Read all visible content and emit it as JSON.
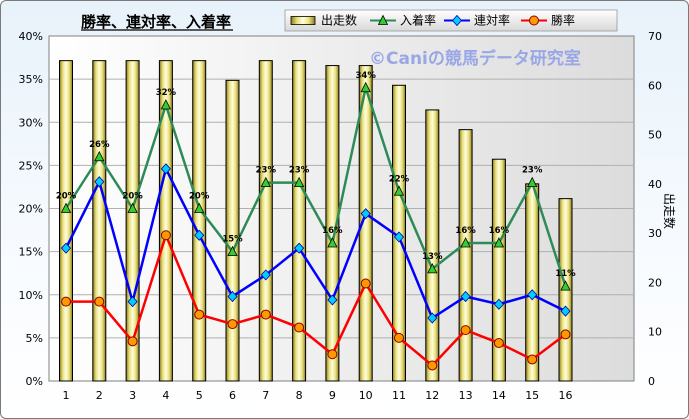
{
  "chart_data": {
    "type": "bar+line",
    "title": "勝率、連対率、入着率",
    "watermark": "©Caniの競馬データ研究室",
    "categories": [
      "1",
      "2",
      "3",
      "4",
      "5",
      "6",
      "7",
      "8",
      "9",
      "10",
      "11",
      "12",
      "13",
      "14",
      "15",
      "16"
    ],
    "y2label": "出走数",
    "ylim": [
      0,
      0.4
    ],
    "y2lim": [
      0,
      70
    ],
    "yticks": [
      "0%",
      "5%",
      "10%",
      "15%",
      "20%",
      "25%",
      "30%",
      "35%",
      "40%"
    ],
    "y2ticks": [
      "0",
      "10",
      "20",
      "30",
      "40",
      "50",
      "60",
      "70"
    ],
    "grid": true,
    "legend_position": "top",
    "series": [
      {
        "name": "出走数",
        "axis": "right",
        "kind": "bar",
        "color": "#e8e07a",
        "values": [
          65,
          65,
          65,
          65,
          65,
          61,
          65,
          65,
          64,
          64,
          60,
          55,
          51,
          45,
          40,
          37
        ]
      },
      {
        "name": "入着率",
        "axis": "left",
        "kind": "line",
        "color": "#2e8b57",
        "marker": "triangle",
        "marker_color": "#33cc33",
        "values": [
          0.2,
          0.26,
          0.2,
          0.32,
          0.2,
          0.15,
          0.23,
          0.23,
          0.16,
          0.34,
          0.22,
          0.13,
          0.16,
          0.16,
          0.23,
          0.11
        ],
        "labels": [
          "20%",
          "26%",
          "20%",
          "32%",
          "20%",
          "15%",
          "23%",
          "23%",
          "16%",
          "34%",
          "22%",
          "13%",
          "16%",
          "16%",
          "23%",
          "11%"
        ]
      },
      {
        "name": "連対率",
        "axis": "left",
        "kind": "line",
        "color": "#0000ff",
        "marker": "diamond",
        "marker_color": "#00ccff",
        "values": [
          0.154,
          0.231,
          0.092,
          0.246,
          0.169,
          0.098,
          0.123,
          0.154,
          0.094,
          0.194,
          0.167,
          0.073,
          0.098,
          0.089,
          0.1,
          0.081
        ]
      },
      {
        "name": "勝率",
        "axis": "left",
        "kind": "line",
        "color": "#ff0000",
        "marker": "circle",
        "marker_color": "#ff9900",
        "values": [
          0.092,
          0.092,
          0.046,
          0.169,
          0.077,
          0.066,
          0.077,
          0.062,
          0.031,
          0.113,
          0.05,
          0.018,
          0.059,
          0.044,
          0.025,
          0.054
        ]
      }
    ]
  }
}
